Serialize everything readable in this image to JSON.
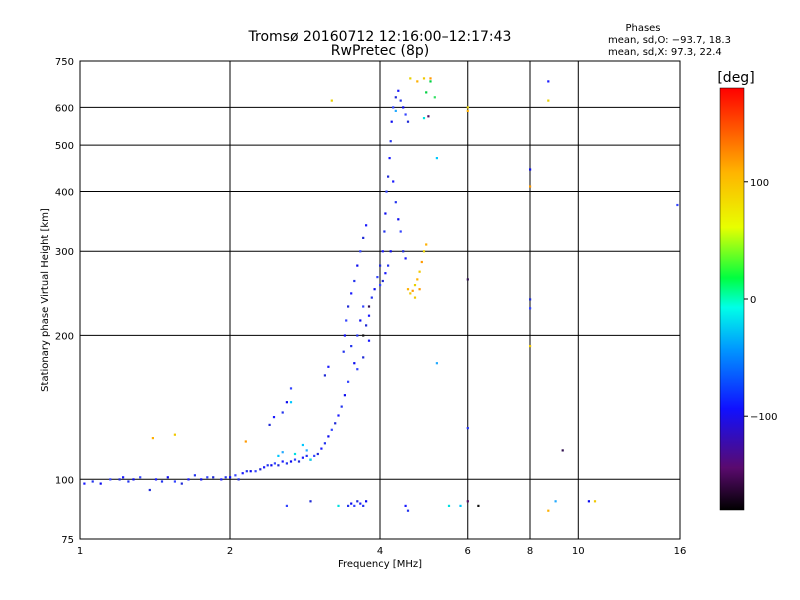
{
  "chart_data": {
    "type": "scatter",
    "title": "Tromsø 20160712 12:16:00–12:17:43",
    "subtitle": "RwPretec (8p)",
    "phases": {
      "heading": "Phases",
      "o_line": "mean, sd,O: −93.7, 18.3",
      "x_line": "mean, sd,X:  97.3, 22.4"
    },
    "xlabel": "Frequency [MHz]",
    "ylabel": "Stationary phase Virtual Height [km]",
    "x_scale": "log",
    "y_scale": "log",
    "xlim": [
      1,
      16
    ],
    "ylim": [
      75,
      750
    ],
    "x_ticks": [
      1,
      2,
      4,
      6,
      8,
      10,
      16
    ],
    "y_ticks": [
      75,
      100,
      200,
      300,
      400,
      500,
      600,
      750
    ],
    "grid": true,
    "colorbar": {
      "label": "[deg]",
      "range": [
        -180,
        180
      ],
      "ticks": [
        100,
        0,
        -100
      ]
    },
    "series": [
      {
        "color_hint": "blue",
        "points": [
          [
            1.02,
            98
          ],
          [
            1.06,
            99
          ],
          [
            1.1,
            98
          ],
          [
            1.15,
            100
          ],
          [
            1.2,
            100
          ],
          [
            1.22,
            101
          ],
          [
            1.25,
            99
          ],
          [
            1.28,
            100
          ],
          [
            1.32,
            101
          ],
          [
            1.38,
            95
          ],
          [
            1.42,
            100
          ],
          [
            1.46,
            99
          ],
          [
            1.5,
            101
          ],
          [
            1.55,
            99
          ],
          [
            1.6,
            98
          ],
          [
            1.65,
            100
          ],
          [
            1.7,
            102
          ],
          [
            1.75,
            100
          ],
          [
            1.8,
            101
          ],
          [
            1.85,
            101
          ],
          [
            1.92,
            100
          ],
          [
            1.96,
            101
          ],
          [
            2.0,
            101
          ],
          [
            2.05,
            102
          ],
          [
            2.08,
            100
          ],
          [
            2.12,
            103
          ],
          [
            2.16,
            104
          ],
          [
            2.2,
            104
          ],
          [
            2.25,
            104
          ],
          [
            2.3,
            105
          ],
          [
            2.34,
            106
          ],
          [
            2.38,
            107
          ],
          [
            2.42,
            107
          ],
          [
            2.46,
            108
          ],
          [
            2.5,
            107
          ],
          [
            2.55,
            109
          ],
          [
            2.6,
            108
          ],
          [
            2.65,
            109
          ],
          [
            2.7,
            110
          ],
          [
            2.75,
            109
          ],
          [
            2.8,
            111
          ],
          [
            2.85,
            112
          ],
          [
            2.9,
            110
          ],
          [
            2.95,
            112
          ],
          [
            3.0,
            113
          ],
          [
            3.05,
            116
          ],
          [
            3.1,
            119
          ],
          [
            3.15,
            123
          ],
          [
            3.2,
            127
          ],
          [
            3.25,
            131
          ],
          [
            3.3,
            136
          ],
          [
            3.35,
            142
          ],
          [
            3.4,
            150
          ],
          [
            3.45,
            160
          ],
          [
            2.4,
            130
          ],
          [
            2.45,
            135
          ],
          [
            2.55,
            138
          ],
          [
            2.6,
            145
          ],
          [
            2.65,
            155
          ],
          [
            3.1,
            165
          ],
          [
            3.15,
            172
          ],
          [
            3.38,
            185
          ],
          [
            3.4,
            200
          ],
          [
            3.42,
            215
          ],
          [
            3.45,
            230
          ],
          [
            3.5,
            245
          ],
          [
            3.55,
            260
          ],
          [
            3.6,
            280
          ],
          [
            3.65,
            300
          ],
          [
            3.7,
            320
          ],
          [
            3.75,
            340
          ],
          [
            3.6,
            200
          ],
          [
            3.65,
            215
          ],
          [
            3.7,
            230
          ],
          [
            3.75,
            210
          ],
          [
            3.8,
            195
          ],
          [
            3.5,
            190
          ],
          [
            3.55,
            175
          ],
          [
            3.6,
            170
          ],
          [
            3.7,
            180
          ],
          [
            3.8,
            220
          ],
          [
            3.85,
            240
          ],
          [
            3.9,
            250
          ],
          [
            4.0,
            255
          ],
          [
            4.05,
            260
          ],
          [
            4.1,
            270
          ],
          [
            4.15,
            280
          ],
          [
            4.2,
            300
          ],
          [
            3.95,
            265
          ],
          [
            4.0,
            280
          ],
          [
            4.05,
            300
          ],
          [
            4.08,
            330
          ],
          [
            4.1,
            360
          ],
          [
            4.12,
            400
          ],
          [
            4.15,
            430
          ],
          [
            4.18,
            470
          ],
          [
            4.2,
            510
          ],
          [
            4.22,
            560
          ],
          [
            4.25,
            600
          ],
          [
            4.3,
            630
          ],
          [
            4.35,
            650
          ],
          [
            4.4,
            620
          ],
          [
            4.45,
            600
          ],
          [
            4.5,
            580
          ],
          [
            4.55,
            560
          ],
          [
            4.25,
            420
          ],
          [
            4.3,
            380
          ],
          [
            4.35,
            350
          ],
          [
            4.4,
            330
          ],
          [
            4.45,
            300
          ],
          [
            4.5,
            290
          ],
          [
            3.45,
            88
          ],
          [
            3.5,
            89
          ],
          [
            3.55,
            88
          ],
          [
            3.6,
            90
          ],
          [
            3.65,
            89
          ],
          [
            3.7,
            88
          ],
          [
            3.75,
            90
          ],
          [
            2.6,
            88
          ],
          [
            2.9,
            90
          ],
          [
            4.5,
            88
          ],
          [
            4.55,
            86
          ],
          [
            8.0,
            445
          ],
          [
            8.0,
            228
          ],
          [
            8.0,
            238
          ],
          [
            8.7,
            680
          ],
          [
            6.0,
            128
          ],
          [
            10.5,
            90
          ],
          [
            15.8,
            375
          ]
        ]
      },
      {
        "color_hint": "cyan",
        "points": [
          [
            2.5,
            112
          ],
          [
            2.55,
            114
          ],
          [
            2.7,
            113
          ],
          [
            2.8,
            118
          ],
          [
            2.85,
            115
          ],
          [
            2.9,
            110
          ],
          [
            2.65,
            145
          ],
          [
            4.3,
            590
          ],
          [
            4.9,
            570
          ],
          [
            5.2,
            470
          ],
          [
            5.2,
            175
          ],
          [
            5.5,
            88
          ],
          [
            5.8,
            88
          ],
          [
            9.0,
            90
          ],
          [
            3.3,
            88
          ]
        ]
      },
      {
        "color_hint": "yellow-orange",
        "points": [
          [
            1.4,
            122
          ],
          [
            1.55,
            124
          ],
          [
            2.15,
            120
          ],
          [
            3.2,
            620
          ],
          [
            4.55,
            250
          ],
          [
            4.6,
            245
          ],
          [
            4.65,
            248
          ],
          [
            4.7,
            255
          ],
          [
            4.75,
            262
          ],
          [
            4.8,
            272
          ],
          [
            4.85,
            285
          ],
          [
            4.9,
            300
          ],
          [
            4.95,
            310
          ],
          [
            4.7,
            240
          ],
          [
            4.8,
            250
          ],
          [
            4.6,
            690
          ],
          [
            4.75,
            680
          ],
          [
            4.9,
            690
          ],
          [
            5.05,
            690
          ],
          [
            6.0,
            600
          ],
          [
            6.0,
            590
          ],
          [
            8.0,
            190
          ],
          [
            8.0,
            410
          ],
          [
            8.7,
            620
          ],
          [
            8.7,
            86
          ],
          [
            10.8,
            90
          ]
        ]
      },
      {
        "color_hint": "green",
        "points": [
          [
            4.95,
            645
          ],
          [
            5.15,
            630
          ],
          [
            5.05,
            680
          ]
        ]
      },
      {
        "color_hint": "dark",
        "points": [
          [
            6.0,
            262
          ],
          [
            6.0,
            90
          ],
          [
            6.3,
            88
          ],
          [
            9.3,
            115
          ],
          [
            5.0,
            575
          ],
          [
            3.7,
            200
          ],
          [
            3.8,
            230
          ]
        ]
      }
    ]
  }
}
